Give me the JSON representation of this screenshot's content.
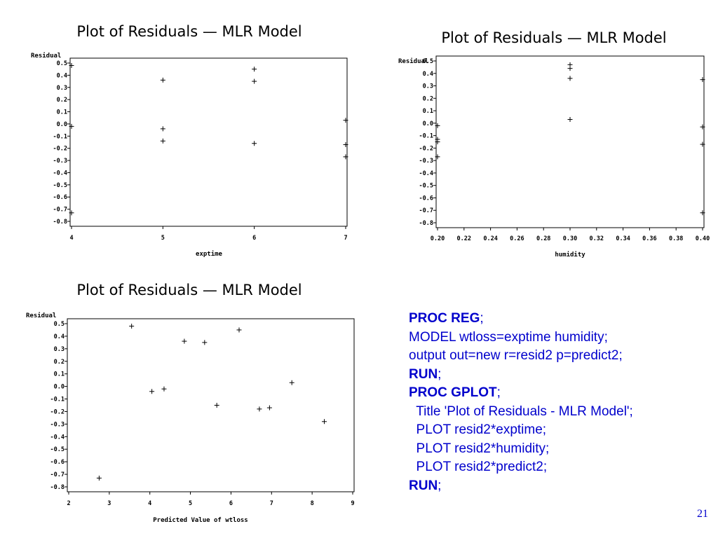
{
  "chart_data": [
    {
      "type": "scatter",
      "title": "Plot of Residuals — MLR Model",
      "ylabel": "Residual",
      "xlabel": "exptime",
      "xlim": [
        4,
        7
      ],
      "ylim": [
        -0.8,
        0.5
      ],
      "xticks": [
        "4",
        "5",
        "6",
        "7"
      ],
      "yticks": [
        "0.5",
        "0.4",
        "0.3",
        "0.2",
        "0.1",
        "0.0",
        "-0.1",
        "-0.2",
        "-0.3",
        "-0.4",
        "-0.5",
        "-0.6",
        "-0.7",
        "-0.8"
      ],
      "marker": "+",
      "points": [
        {
          "x": 4,
          "y": 0.48
        },
        {
          "x": 4,
          "y": -0.02
        },
        {
          "x": 4,
          "y": -0.73
        },
        {
          "x": 5,
          "y": 0.36
        },
        {
          "x": 5,
          "y": -0.04
        },
        {
          "x": 5,
          "y": -0.14
        },
        {
          "x": 6,
          "y": 0.45
        },
        {
          "x": 6,
          "y": 0.35
        },
        {
          "x": 6,
          "y": -0.16
        },
        {
          "x": 7,
          "y": 0.03
        },
        {
          "x": 7,
          "y": -0.17
        },
        {
          "x": 7,
          "y": -0.27
        }
      ]
    },
    {
      "type": "scatter",
      "title": "Plot of Residuals — MLR Model",
      "ylabel": "Residual",
      "xlabel": "humidity",
      "xlim": [
        0.2,
        0.4
      ],
      "ylim": [
        -0.8,
        0.5
      ],
      "xticks": [
        "0.20",
        "0.22",
        "0.24",
        "0.26",
        "0.28",
        "0.30",
        "0.32",
        "0.34",
        "0.36",
        "0.38",
        "0.40"
      ],
      "yticks": [
        "0.5",
        "0.4",
        "0.3",
        "0.2",
        "0.1",
        "0.0",
        "-0.1",
        "-0.2",
        "-0.3",
        "-0.4",
        "-0.5",
        "-0.6",
        "-0.7",
        "-0.8"
      ],
      "marker": "+",
      "points": [
        {
          "x": 0.2,
          "y": -0.02
        },
        {
          "x": 0.2,
          "y": -0.13
        },
        {
          "x": 0.2,
          "y": -0.15
        },
        {
          "x": 0.2,
          "y": -0.27
        },
        {
          "x": 0.3,
          "y": 0.47
        },
        {
          "x": 0.3,
          "y": 0.44
        },
        {
          "x": 0.3,
          "y": 0.36
        },
        {
          "x": 0.3,
          "y": 0.03
        },
        {
          "x": 0.4,
          "y": 0.35
        },
        {
          "x": 0.4,
          "y": -0.03
        },
        {
          "x": 0.4,
          "y": -0.17
        },
        {
          "x": 0.4,
          "y": -0.72
        }
      ]
    },
    {
      "type": "scatter",
      "title": "Plot of Residuals — MLR Model",
      "ylabel": "Residual",
      "xlabel": "Predicted Value of wtloss",
      "xlim": [
        2,
        9
      ],
      "ylim": [
        -0.8,
        0.5
      ],
      "xticks": [
        "2",
        "3",
        "4",
        "5",
        "6",
        "7",
        "8",
        "9"
      ],
      "yticks": [
        "0.5",
        "0.4",
        "0.3",
        "0.2",
        "0.1",
        "0.0",
        "-0.1",
        "-0.2",
        "-0.3",
        "-0.4",
        "-0.5",
        "-0.6",
        "-0.7",
        "-0.8"
      ],
      "marker": "+",
      "points": [
        {
          "x": 2.75,
          "y": -0.73
        },
        {
          "x": 3.55,
          "y": 0.48
        },
        {
          "x": 4.05,
          "y": -0.04
        },
        {
          "x": 4.35,
          "y": -0.02
        },
        {
          "x": 4.85,
          "y": 0.36
        },
        {
          "x": 5.35,
          "y": 0.35
        },
        {
          "x": 5.65,
          "y": -0.15
        },
        {
          "x": 6.2,
          "y": 0.45
        },
        {
          "x": 6.7,
          "y": -0.18
        },
        {
          "x": 6.95,
          "y": -0.17
        },
        {
          "x": 7.5,
          "y": 0.03
        },
        {
          "x": 8.3,
          "y": -0.28
        }
      ]
    }
  ],
  "code": [
    [
      {
        "t": "PROC REG",
        "b": true
      },
      {
        "t": ";",
        "b": false
      }
    ],
    [
      {
        "t": "MODEL wtloss=exptime humidity;",
        "b": false
      }
    ],
    [
      {
        "t": "output out=new r=resid2 p=predict2;",
        "b": false
      }
    ],
    [
      {
        "t": "RUN",
        "b": true
      },
      {
        "t": ";",
        "b": false
      }
    ],
    [
      {
        "t": "PROC GPLOT",
        "b": true
      },
      {
        "t": ";",
        "b": false
      }
    ],
    [
      {
        "t": "  Title 'Plot of Residuals - MLR Model';",
        "b": false
      }
    ],
    [
      {
        "t": "  PLOT resid2*exptime;",
        "b": false
      }
    ],
    [
      {
        "t": "  PLOT resid2*humidity;",
        "b": false
      }
    ],
    [
      {
        "t": "  PLOT resid2*predict2;",
        "b": false
      }
    ],
    [
      {
        "t": "RUN",
        "b": true
      },
      {
        "t": ";",
        "b": false
      }
    ]
  ],
  "slide_number": "21"
}
